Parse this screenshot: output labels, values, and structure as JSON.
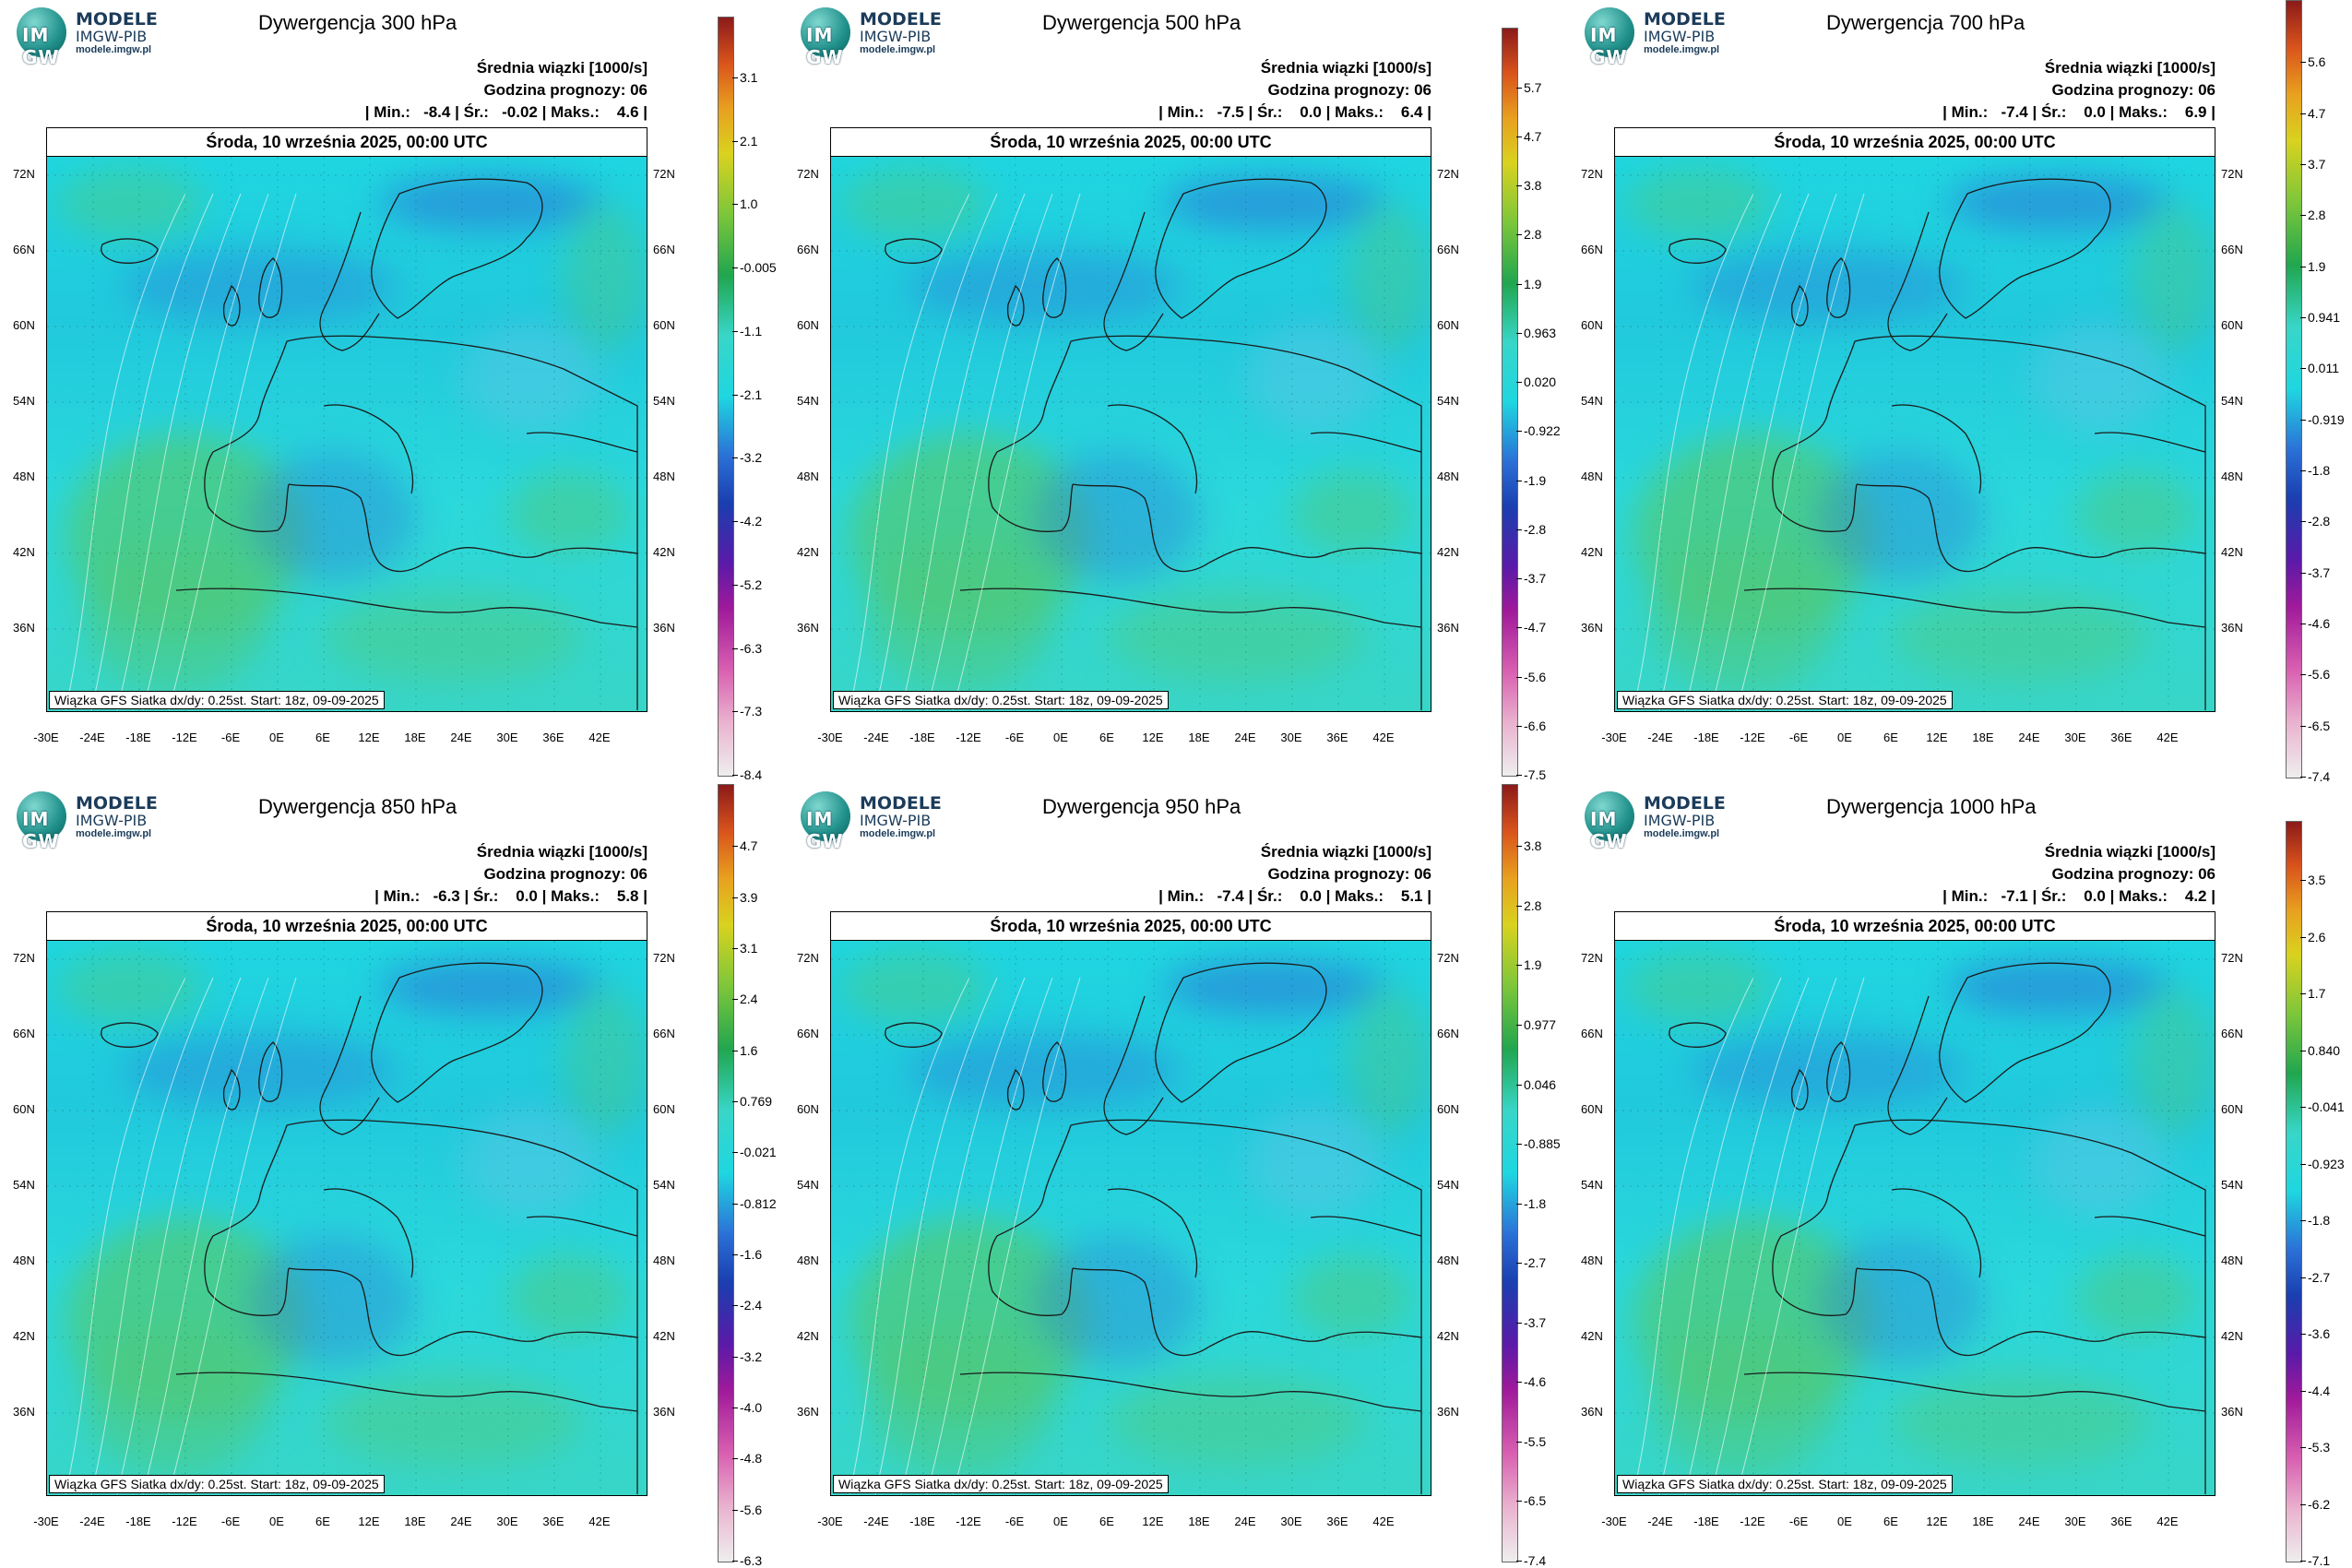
{
  "logo": {
    "line1": "MODELE",
    "line2": "IMGW-PIB",
    "line3": "modele.imgw.pl",
    "disc": "IM GW"
  },
  "common": {
    "avg_label": "Średnia wiązki [1000/s]",
    "forecast_hour": "Godzina prognozy: 06",
    "date": "Środa, 10 września 2025, 00:00 UTC",
    "source": "Wiązka GFS Siatka dx/dy: 0.25st. Start: 18z, 09-09-2025",
    "lat_labels": [
      "72N",
      "66N",
      "60N",
      "54N",
      "48N",
      "42N",
      "36N"
    ],
    "lon_labels": [
      "-30E",
      "-24E",
      "-18E",
      "-12E",
      "-6E",
      "0E",
      "6E",
      "12E",
      "18E",
      "24E",
      "30E",
      "36E",
      "42E"
    ]
  },
  "panels": [
    {
      "title": "Dywergencja 300 hPa",
      "stats": "| Min.:   -8.4 | Śr.:   -0.02 | Maks.:    4.6 |",
      "colorbar": [
        "3.1",
        "2.1",
        "1.0",
        "-0.005",
        "-1.1",
        "-2.1",
        "-3.2",
        "-4.2",
        "-5.2",
        "-6.3",
        "-7.3",
        "-8.4"
      ]
    },
    {
      "title": "Dywergencja 500 hPa",
      "stats": "| Min.:   -7.5 | Śr.:    0.0 | Maks.:    6.4 |",
      "colorbar": [
        "5.7",
        "4.7",
        "3.8",
        "2.8",
        "1.9",
        "0.963",
        "0.020",
        "-0.922",
        "-1.9",
        "-2.8",
        "-3.7",
        "-4.7",
        "-5.6",
        "-6.6",
        "-7.5"
      ]
    },
    {
      "title": "Dywergencja 700 hPa",
      "stats": "| Min.:   -7.4 | Śr.:    0.0 | Maks.:    6.9 |",
      "colorbar": [
        "5.6",
        "4.7",
        "3.7",
        "2.8",
        "1.9",
        "0.941",
        "0.011",
        "-0.919",
        "-1.8",
        "-2.8",
        "-3.7",
        "-4.6",
        "-5.6",
        "-6.5",
        "-7.4"
      ]
    },
    {
      "title": "Dywergencja 850 hPa",
      "stats": "| Min.:   -6.3 | Śr.:    0.0 | Maks.:    5.8 |",
      "colorbar": [
        "4.7",
        "3.9",
        "3.1",
        "2.4",
        "1.6",
        "0.769",
        "-0.021",
        "-0.812",
        "-1.6",
        "-2.4",
        "-3.2",
        "-4.0",
        "-4.8",
        "-5.6",
        "-6.3"
      ]
    },
    {
      "title": "Dywergencja 950 hPa",
      "stats": "| Min.:   -7.4 | Śr.:    0.0 | Maks.:    5.1 |",
      "colorbar": [
        "3.8",
        "2.8",
        "1.9",
        "0.977",
        "0.046",
        "-0.885",
        "-1.8",
        "-2.7",
        "-3.7",
        "-4.6",
        "-5.5",
        "-6.5",
        "-7.4"
      ]
    },
    {
      "title": "Dywergencja 1000 hPa",
      "stats": "| Min.:   -7.1 | Śr.:    0.0 | Maks.:    4.2 |",
      "colorbar": [
        "3.5",
        "2.6",
        "1.7",
        "0.840",
        "-0.041",
        "-0.923",
        "-1.8",
        "-2.7",
        "-3.6",
        "-4.4",
        "-5.3",
        "-6.2",
        "-7.1"
      ]
    }
  ],
  "colors": {
    "accent_blue": "#1fd6e0",
    "convergence": "#2b6fd6",
    "divergence": "#4fc97a",
    "land_line": "#1a1a1a"
  }
}
